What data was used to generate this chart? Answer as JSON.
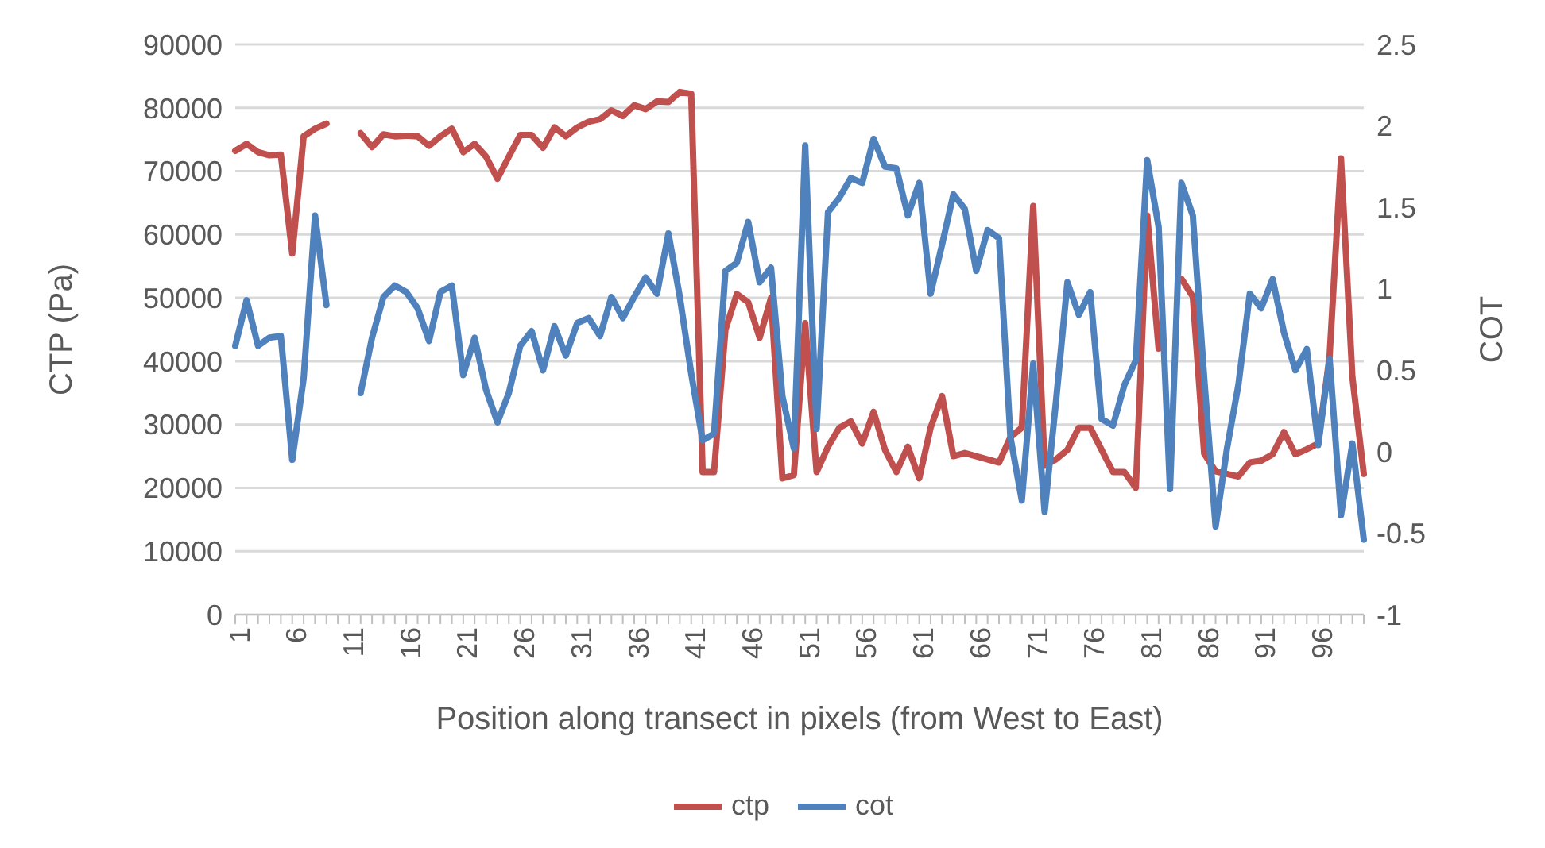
{
  "chart_data": {
    "type": "line",
    "xlabel": "Position along transect in pixels (from West to East)",
    "ylabel": "CTP (Pa)",
    "y2label": "COT",
    "categories": [
      "1",
      null,
      null,
      null,
      null,
      "6",
      null,
      null,
      null,
      null,
      "11",
      null,
      null,
      null,
      null,
      "16",
      null,
      null,
      null,
      null,
      "21",
      null,
      null,
      null,
      null,
      "26",
      null,
      null,
      null,
      null,
      "31",
      null,
      null,
      null,
      null,
      "36",
      null,
      null,
      null,
      null,
      "41",
      null,
      null,
      null,
      null,
      "46",
      null,
      null,
      null,
      null,
      "51",
      null,
      null,
      null,
      null,
      "56",
      null,
      null,
      null,
      null,
      "61",
      null,
      null,
      null,
      null,
      "66",
      null,
      null,
      null,
      null,
      "71",
      null,
      null,
      null,
      null,
      "76",
      null,
      null,
      null,
      null,
      "81",
      null,
      null,
      null,
      null,
      "86",
      null,
      null,
      null,
      null,
      "91",
      null,
      null,
      null,
      null,
      "96",
      null,
      null,
      null,
      null
    ],
    "series": [
      {
        "name": "ctp",
        "color": "#c0504d",
        "values": [
          73200,
          74300,
          73000,
          72500,
          72600,
          57000,
          75500,
          76700,
          77500,
          null,
          null,
          76000,
          73800,
          75800,
          75500,
          75600,
          75500,
          74000,
          75500,
          76700,
          73000,
          74300,
          72300,
          68800,
          72300,
          75700,
          75700,
          73700,
          76900,
          75500,
          76900,
          77800,
          78200,
          79600,
          78700,
          80400,
          79800,
          81000,
          80900,
          82500,
          82200,
          22500,
          22500,
          45000,
          50600,
          49300,
          43700,
          50000,
          21500,
          22000,
          46000,
          22500,
          26500,
          29500,
          30500,
          27000,
          32000,
          26000,
          22500,
          26500,
          21500,
          29500,
          34500,
          25000,
          25500,
          25000,
          24500,
          24000,
          28000,
          29500,
          64500,
          23500,
          24500,
          26000,
          29500,
          29500,
          26000,
          22500,
          22500,
          20000,
          63000,
          42000,
          null,
          53000,
          50200,
          25400,
          22600,
          22200,
          21800,
          24000,
          24300,
          25300,
          28800,
          25300,
          26100,
          27000,
          40800,
          72000,
          37500,
          22200
        ]
      },
      {
        "name": "cot",
        "color": "#4f81bd",
        "axis": "y2",
        "values": [
          0.65,
          0.93,
          0.65,
          0.7,
          0.71,
          -0.05,
          0.45,
          1.45,
          0.9,
          null,
          null,
          0.36,
          0.7,
          0.95,
          1.02,
          0.98,
          0.88,
          0.68,
          0.98,
          1.02,
          0.47,
          0.7,
          0.38,
          0.18,
          0.36,
          0.65,
          0.74,
          0.5,
          0.77,
          0.59,
          0.79,
          0.82,
          0.71,
          0.95,
          0.82,
          0.95,
          1.07,
          0.97,
          1.34,
          0.95,
          0.48,
          0.07,
          0.11,
          1.11,
          1.16,
          1.41,
          1.04,
          1.13,
          0.34,
          0.02,
          1.88,
          0.14,
          1.47,
          1.56,
          1.68,
          1.65,
          1.92,
          1.75,
          1.74,
          1.45,
          1.65,
          0.97,
          1.27,
          1.58,
          1.49,
          1.11,
          1.36,
          1.31,
          0.09,
          -0.3,
          0.54,
          -0.37,
          0.31,
          1.04,
          0.84,
          0.98,
          0.2,
          0.16,
          0.41,
          0.56,
          1.79,
          1.38,
          -0.23,
          1.65,
          1.45,
          0.45,
          -0.46,
          0.02,
          0.41,
          0.97,
          0.88,
          1.06,
          0.73,
          0.5,
          0.63,
          0.04,
          0.57,
          -0.39,
          0.05,
          -0.54
        ]
      }
    ],
    "ylim": [
      0,
      90000
    ],
    "yticks": [
      0,
      10000,
      20000,
      30000,
      40000,
      50000,
      60000,
      70000,
      80000,
      90000
    ],
    "y2lim": [
      -1,
      2.5
    ],
    "y2ticks": [
      -1,
      -0.5,
      0,
      0.5,
      1,
      1.5,
      2,
      2.5
    ],
    "grid": "y",
    "legend": "bottom",
    "marker": "none",
    "line_style": "solid"
  }
}
